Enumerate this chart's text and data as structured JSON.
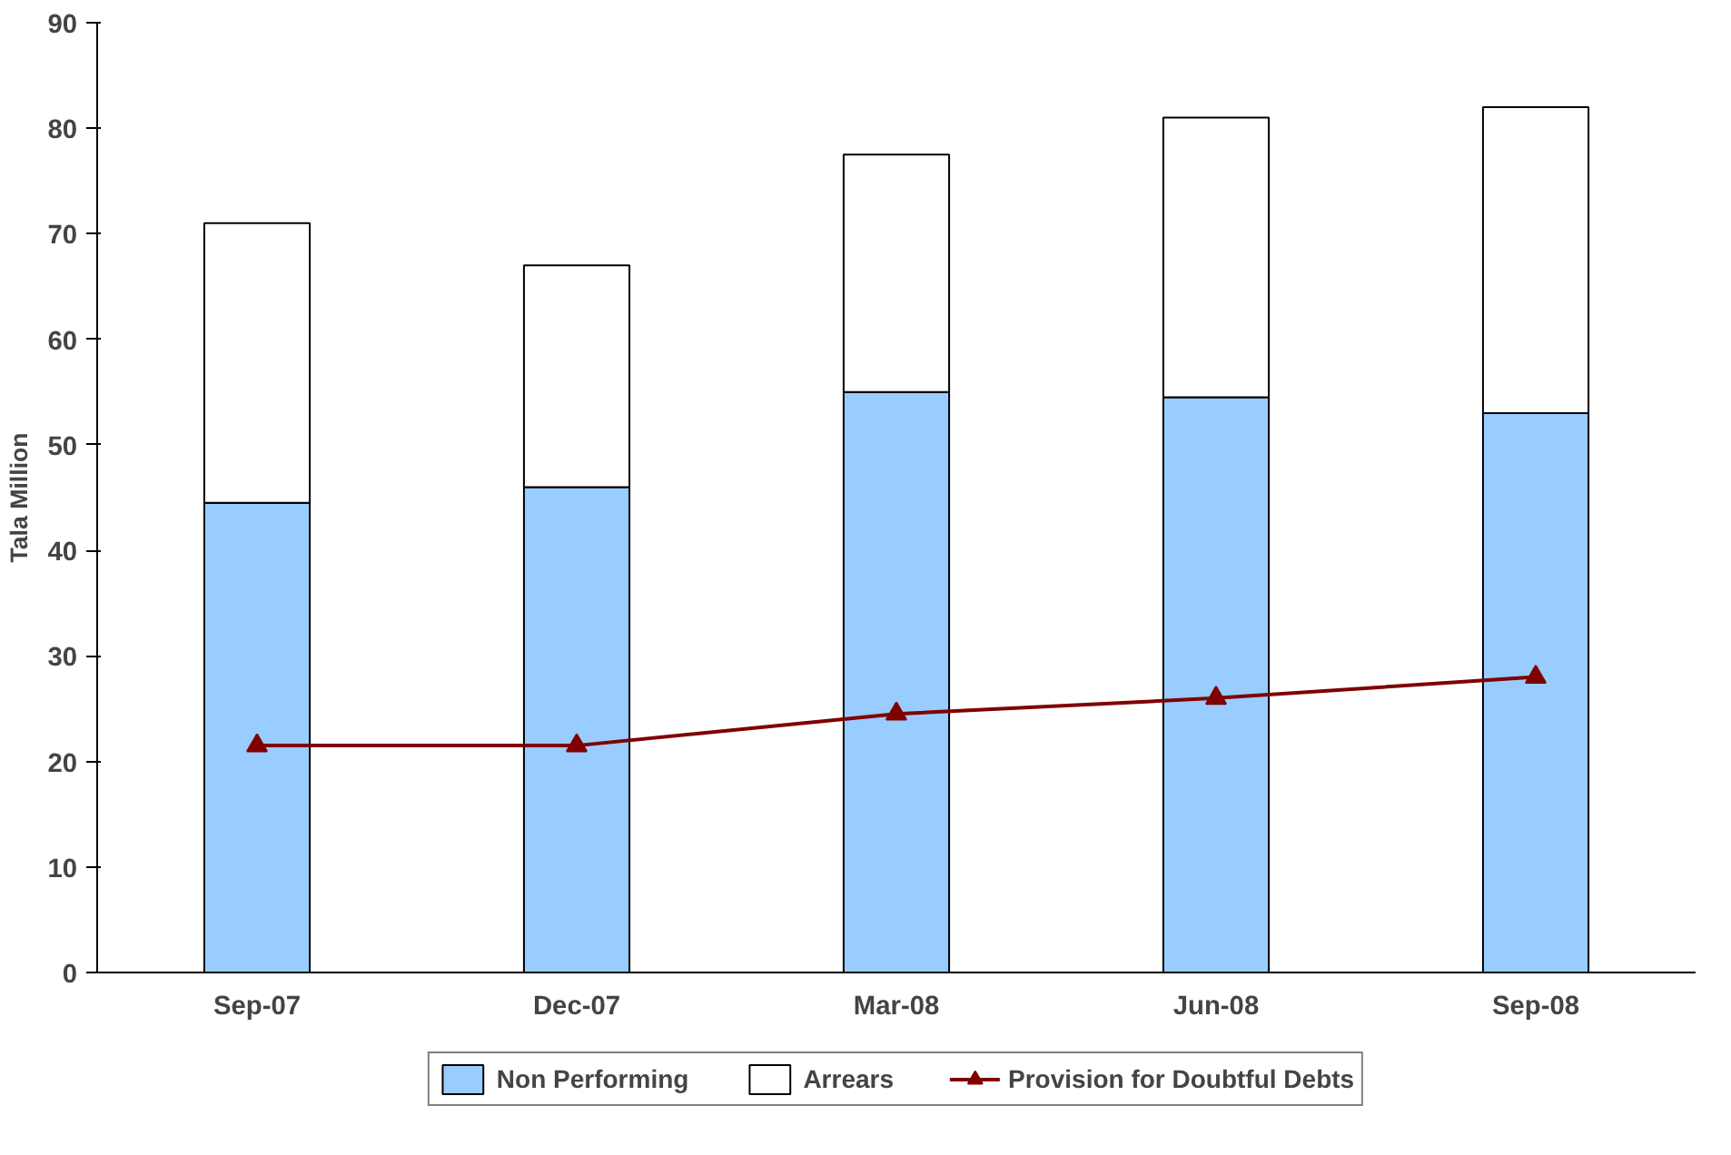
{
  "chart_data": {
    "type": "bar",
    "stacked": true,
    "ylabel": "Tala Million",
    "categories": [
      "Sep-07",
      "Dec-07",
      "Mar-08",
      "Jun-08",
      "Sep-08"
    ],
    "series": [
      {
        "name": "Non Performing",
        "color": "#99ccff",
        "values": [
          44.5,
          46,
          55,
          54.5,
          53
        ]
      },
      {
        "name": "Arrears",
        "color": "#ffffff",
        "values": [
          26.5,
          21,
          22.5,
          26.5,
          29
        ]
      },
      {
        "name": "Provision for Doubtful Debts",
        "type": "line",
        "color": "#800000",
        "marker": "triangle",
        "values": [
          21.5,
          21.5,
          24.5,
          26,
          28
        ]
      }
    ],
    "ylim": [
      0,
      90
    ],
    "yticks": [
      0,
      10,
      20,
      30,
      40,
      50,
      60,
      70,
      80,
      90
    ],
    "grid": false,
    "legend": "bottom"
  }
}
